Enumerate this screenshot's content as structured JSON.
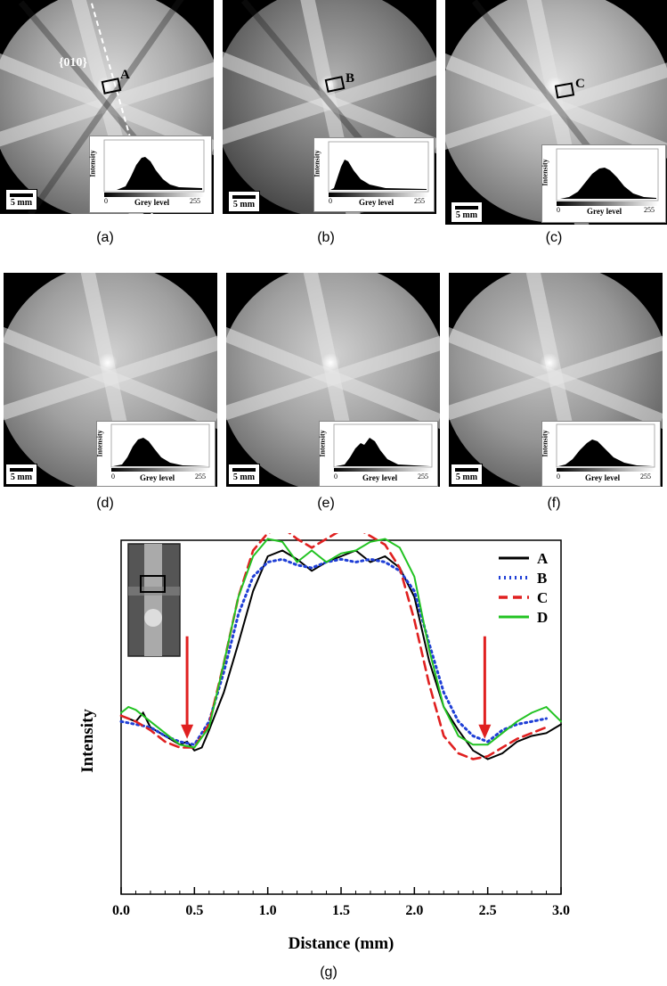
{
  "panels": [
    {
      "label": "(a)",
      "roi": "A",
      "plane": "{010}",
      "scale": "5 mm",
      "hist": {
        "xlabel": "Grey level",
        "ylabel": "Intensity",
        "x0": "0",
        "x1": "255"
      }
    },
    {
      "label": "(b)",
      "roi": "B",
      "scale": "5 mm",
      "hist": {
        "xlabel": "Grey level",
        "ylabel": "Intensity",
        "x0": "0",
        "x1": "255"
      }
    },
    {
      "label": "(c)",
      "roi": "C",
      "scale": "5 mm",
      "hist": {
        "xlabel": "Grey level",
        "ylabel": "Intensity",
        "x0": "0",
        "x1": "255"
      }
    },
    {
      "label": "(d)",
      "scale": "5 mm",
      "hist": {
        "xlabel": "Grey level",
        "ylabel": "Intensity",
        "x0": "0",
        "x1": "255"
      }
    },
    {
      "label": "(e)",
      "scale": "5 mm",
      "hist": {
        "xlabel": "Grey level",
        "ylabel": "Intensity",
        "x0": "0",
        "x1": "255"
      }
    },
    {
      "label": "(f)",
      "scale": "5 mm",
      "hist": {
        "xlabel": "Grey level",
        "ylabel": "Intensity",
        "x0": "0",
        "x1": "255"
      }
    }
  ],
  "chart_label": "(g)",
  "chart_data": {
    "type": "line",
    "title": "",
    "xlabel": "Distance (mm)",
    "ylabel": "Intensity",
    "xlim": [
      0.0,
      3.0
    ],
    "ylim": [
      0,
      1
    ],
    "xticks": [
      "0.0",
      "0.5",
      "1.0",
      "1.5",
      "2.0",
      "2.5",
      "3.0"
    ],
    "yticks": [],
    "legend_position": "top-right",
    "annotations": [
      {
        "type": "arrow",
        "x": 0.45,
        "direction": "down",
        "color": "#e02020"
      },
      {
        "type": "arrow",
        "x": 2.48,
        "direction": "down",
        "color": "#e02020"
      }
    ],
    "series": [
      {
        "name": "A",
        "color": "#000000",
        "style": "solid",
        "x": [
          0,
          0.1,
          0.15,
          0.2,
          0.3,
          0.4,
          0.45,
          0.5,
          0.55,
          0.6,
          0.7,
          0.8,
          0.9,
          1.0,
          1.1,
          1.2,
          1.3,
          1.4,
          1.5,
          1.6,
          1.7,
          1.8,
          1.9,
          2.0,
          2.1,
          2.2,
          2.3,
          2.4,
          2.5,
          2.6,
          2.7,
          2.8,
          2.9,
          3.0
        ],
        "y": [
          0.37,
          0.35,
          0.38,
          0.33,
          0.3,
          0.27,
          0.28,
          0.25,
          0.26,
          0.32,
          0.45,
          0.62,
          0.8,
          0.92,
          0.94,
          0.91,
          0.87,
          0.9,
          0.92,
          0.94,
          0.9,
          0.92,
          0.88,
          0.78,
          0.56,
          0.4,
          0.32,
          0.25,
          0.22,
          0.24,
          0.28,
          0.3,
          0.31,
          0.34
        ]
      },
      {
        "name": "B",
        "color": "#1f3fd6",
        "style": "dotted",
        "x": [
          0,
          0.1,
          0.2,
          0.3,
          0.4,
          0.5,
          0.6,
          0.7,
          0.8,
          0.9,
          1.0,
          1.1,
          1.2,
          1.3,
          1.4,
          1.5,
          1.6,
          1.7,
          1.8,
          1.9,
          2.0,
          2.1,
          2.2,
          2.3,
          2.4,
          2.5,
          2.6,
          2.7,
          2.8,
          2.9
        ],
        "y": [
          0.35,
          0.34,
          0.33,
          0.3,
          0.28,
          0.27,
          0.35,
          0.52,
          0.72,
          0.85,
          0.9,
          0.91,
          0.89,
          0.88,
          0.9,
          0.91,
          0.9,
          0.91,
          0.9,
          0.87,
          0.8,
          0.62,
          0.45,
          0.35,
          0.3,
          0.28,
          0.32,
          0.34,
          0.35,
          0.36
        ]
      },
      {
        "name": "C",
        "color": "#e02020",
        "style": "dashed",
        "x": [
          0,
          0.1,
          0.2,
          0.3,
          0.4,
          0.5,
          0.6,
          0.7,
          0.8,
          0.9,
          1.0,
          1.1,
          1.2,
          1.3,
          1.4,
          1.5,
          1.6,
          1.7,
          1.8,
          1.9,
          2.0,
          2.1,
          2.2,
          2.3,
          2.4,
          2.5,
          2.6,
          2.7,
          2.8,
          2.9
        ],
        "y": [
          0.37,
          0.35,
          0.32,
          0.28,
          0.26,
          0.26,
          0.34,
          0.55,
          0.78,
          0.94,
          1.0,
          1.02,
          0.98,
          0.95,
          0.98,
          1.01,
          1.02,
          0.99,
          0.96,
          0.88,
          0.7,
          0.48,
          0.3,
          0.24,
          0.22,
          0.23,
          0.26,
          0.29,
          0.31,
          0.33
        ]
      },
      {
        "name": "D",
        "color": "#22c322",
        "style": "solid",
        "x": [
          0,
          0.05,
          0.1,
          0.2,
          0.3,
          0.4,
          0.5,
          0.6,
          0.7,
          0.8,
          0.9,
          1.0,
          1.1,
          1.2,
          1.3,
          1.4,
          1.5,
          1.6,
          1.7,
          1.8,
          1.9,
          2.0,
          2.1,
          2.2,
          2.3,
          2.4,
          2.5,
          2.6,
          2.7,
          2.8,
          2.9,
          3.0
        ],
        "y": [
          0.38,
          0.4,
          0.39,
          0.35,
          0.31,
          0.27,
          0.26,
          0.33,
          0.55,
          0.78,
          0.92,
          0.98,
          0.97,
          0.9,
          0.94,
          0.9,
          0.93,
          0.94,
          0.97,
          0.98,
          0.95,
          0.85,
          0.6,
          0.4,
          0.3,
          0.27,
          0.27,
          0.31,
          0.35,
          0.38,
          0.4,
          0.35
        ]
      }
    ]
  }
}
